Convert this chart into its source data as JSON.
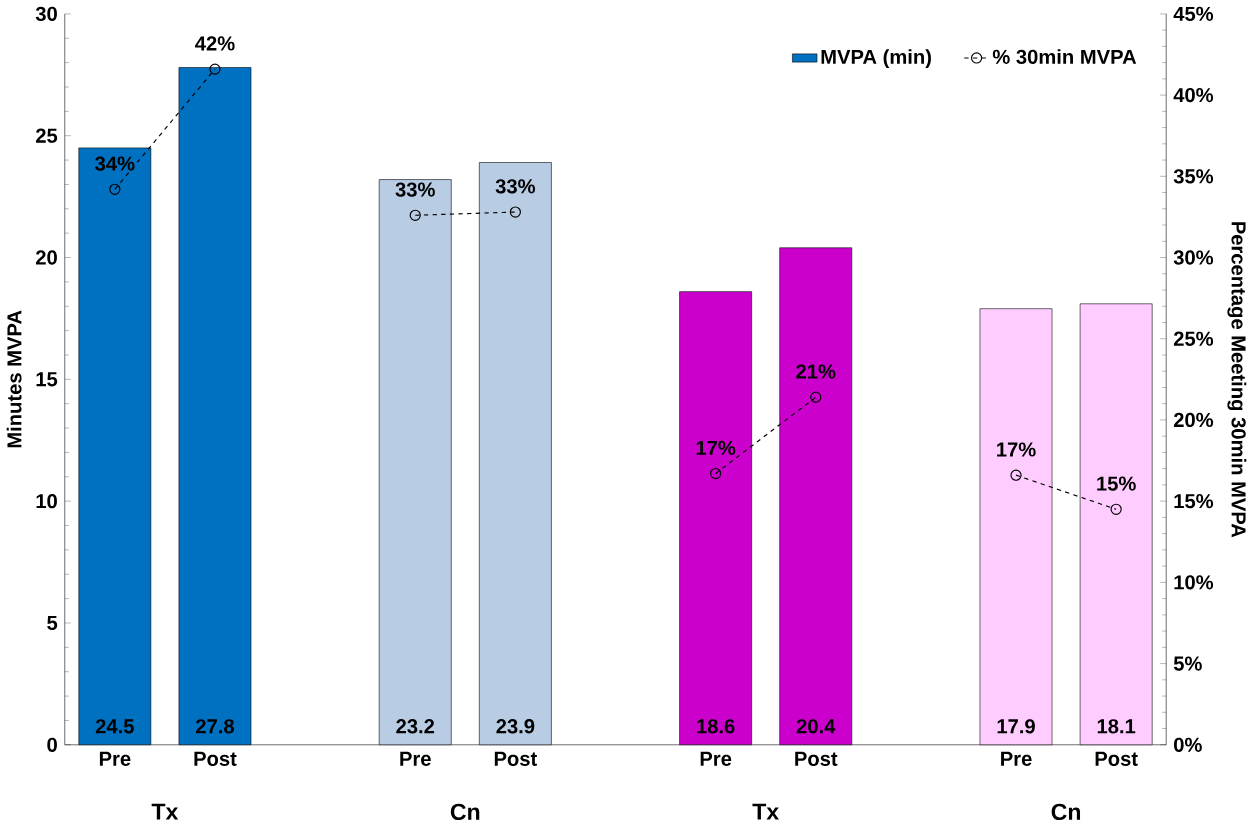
{
  "chart_data": {
    "type": "bar",
    "ylabel": "Minutes MVPA",
    "y2label": "Percentage Meeting 30min MVPA",
    "categories": [
      "Pre",
      "Post",
      null,
      "Pre",
      "Post",
      null,
      "Pre",
      "Post",
      null,
      "Pre",
      "Post"
    ],
    "series": [
      {
        "name": "MVPA (min)",
        "colors": [
          "#0070c0",
          "#0070c0",
          null,
          "#b8cce4",
          "#b8cce4",
          null,
          "#cc00cc",
          "#cc00cc",
          null,
          "#ffccff",
          "#ffccff"
        ],
        "values": [
          24.5,
          27.8,
          null,
          23.2,
          23.9,
          null,
          18.6,
          20.4,
          null,
          17.9,
          18.1
        ],
        "value_labels": [
          "24.5",
          "27.8",
          null,
          "23.2",
          "23.9",
          null,
          "18.6",
          "20.4",
          null,
          "17.9",
          "18.1"
        ]
      },
      {
        "name": "% 30min MVPA",
        "type": "line",
        "axis": "y2",
        "color": "#000000",
        "line_style": "dashed",
        "marker": "circle",
        "values": [
          34.2,
          41.6,
          null,
          32.6,
          32.8,
          null,
          16.7,
          21.4,
          null,
          16.6,
          14.5
        ],
        "value_labels": [
          "34%",
          "42%",
          null,
          "33%",
          "33%",
          null,
          "17%",
          "21%",
          null,
          "17%",
          "15%"
        ]
      }
    ],
    "ylim": [
      0,
      30
    ],
    "yticks": [
      0,
      5,
      10,
      15,
      20,
      25,
      30
    ],
    "y2lim": [
      0,
      45
    ],
    "y2ticks": [
      {
        "value": 0,
        "label": "0%"
      },
      {
        "value": 5,
        "label": "5%"
      },
      {
        "value": 10,
        "label": "10%"
      },
      {
        "value": 15,
        "label": "15%"
      },
      {
        "value": 20,
        "label": "20%"
      },
      {
        "value": 25,
        "label": "25%"
      },
      {
        "value": 30,
        "label": "30%"
      },
      {
        "value": 35,
        "label": "35%"
      },
      {
        "value": 40,
        "label": "40%"
      },
      {
        "value": 45,
        "label": "45%"
      }
    ],
    "annotations": [
      "Tx",
      "Cn",
      "Tx",
      "Cn"
    ],
    "legend": "top right",
    "grid": false
  }
}
